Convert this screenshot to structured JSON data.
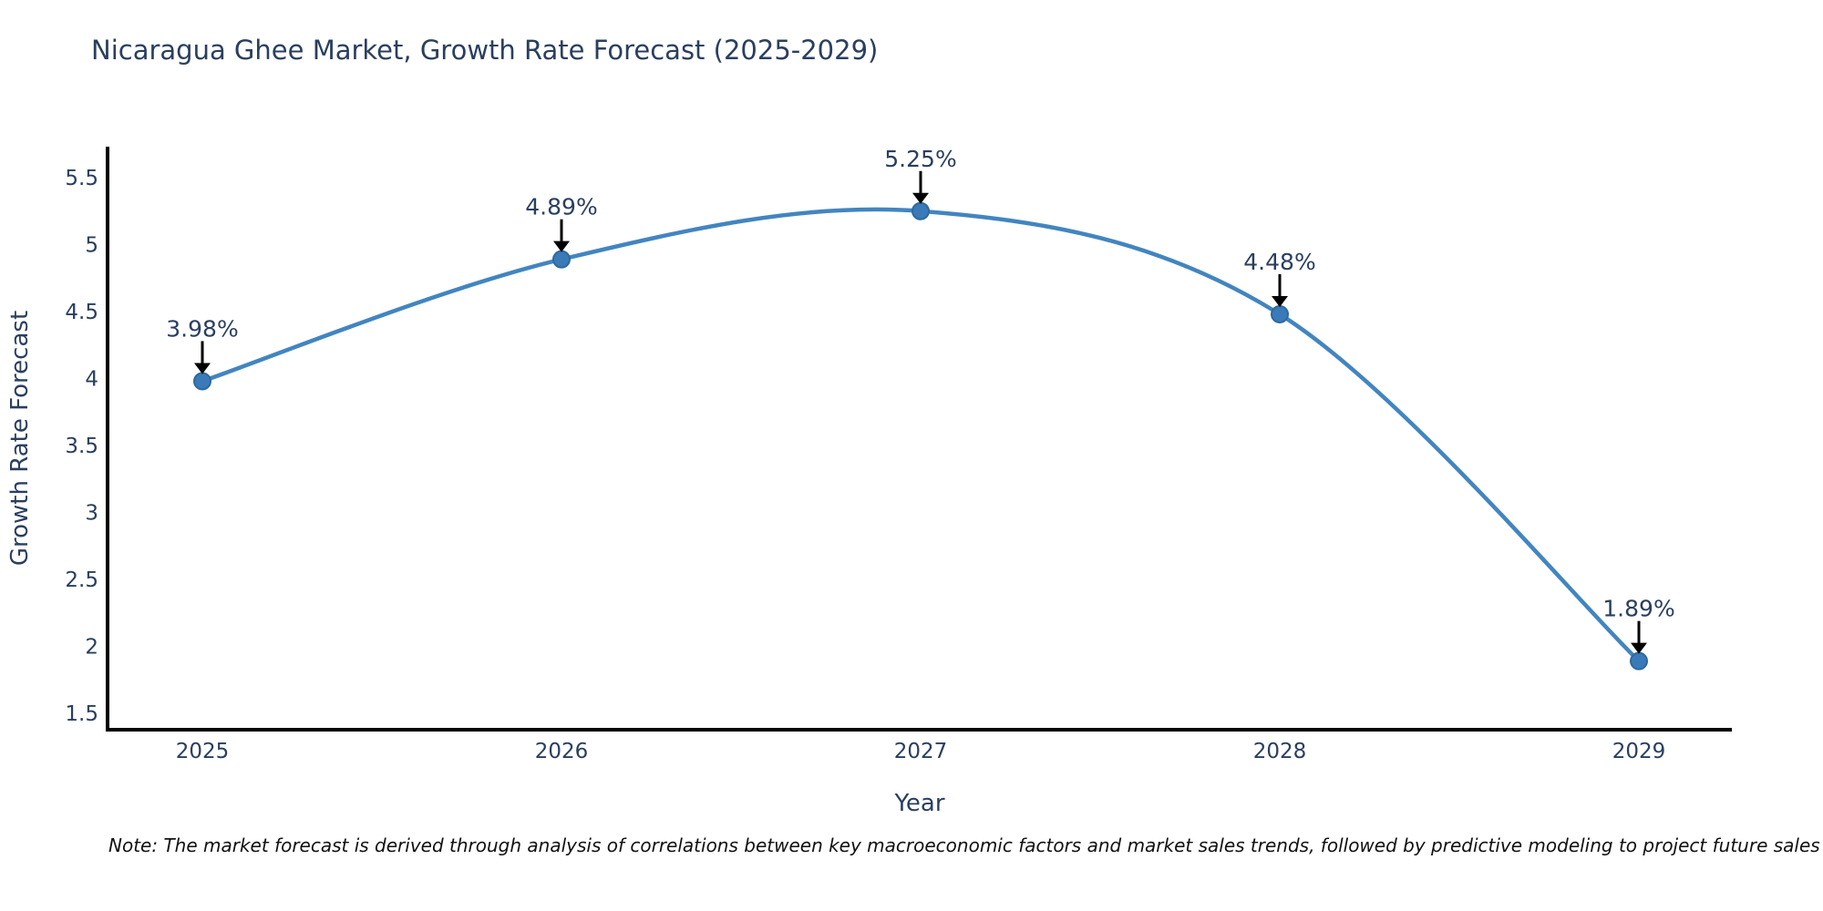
{
  "chart_data": {
    "type": "line",
    "title": "Nicaragua Ghee Market, Growth Rate Forecast (2025-2029)",
    "xlabel": "Year",
    "ylabel": "Growth Rate Forecast",
    "categories": [
      "2025",
      "2026",
      "2027",
      "2028",
      "2029"
    ],
    "series": [
      {
        "name": "Growth Rate Forecast",
        "values": [
          3.98,
          4.89,
          5.25,
          4.48,
          1.89
        ]
      }
    ],
    "point_labels": [
      "3.98%",
      "4.89%",
      "5.25%",
      "4.48%",
      "1.89%"
    ],
    "y_ticks": [
      1.5,
      2,
      2.5,
      3,
      3.5,
      4,
      4.5,
      5,
      5.5
    ],
    "ylim": [
      1.29,
      5.74
    ],
    "grid": false,
    "legend": "none",
    "line_shape": "spline",
    "colors": {
      "line": "#4285c0",
      "marker_fill": "#3a7ab9",
      "marker_stroke": "#2e699f",
      "axis_line": "#000000",
      "axis_text": "#2a3f5f",
      "annotation_text": "#2a3f5f",
      "annotation_arrow": "#000000",
      "note_text": "#111111",
      "background": "#ffffff"
    }
  },
  "note": {
    "text": "Note: The market forecast is derived through analysis of correlations between key macroeconomic factors and market sales trends, followed by predictive modeling to project future sales"
  }
}
